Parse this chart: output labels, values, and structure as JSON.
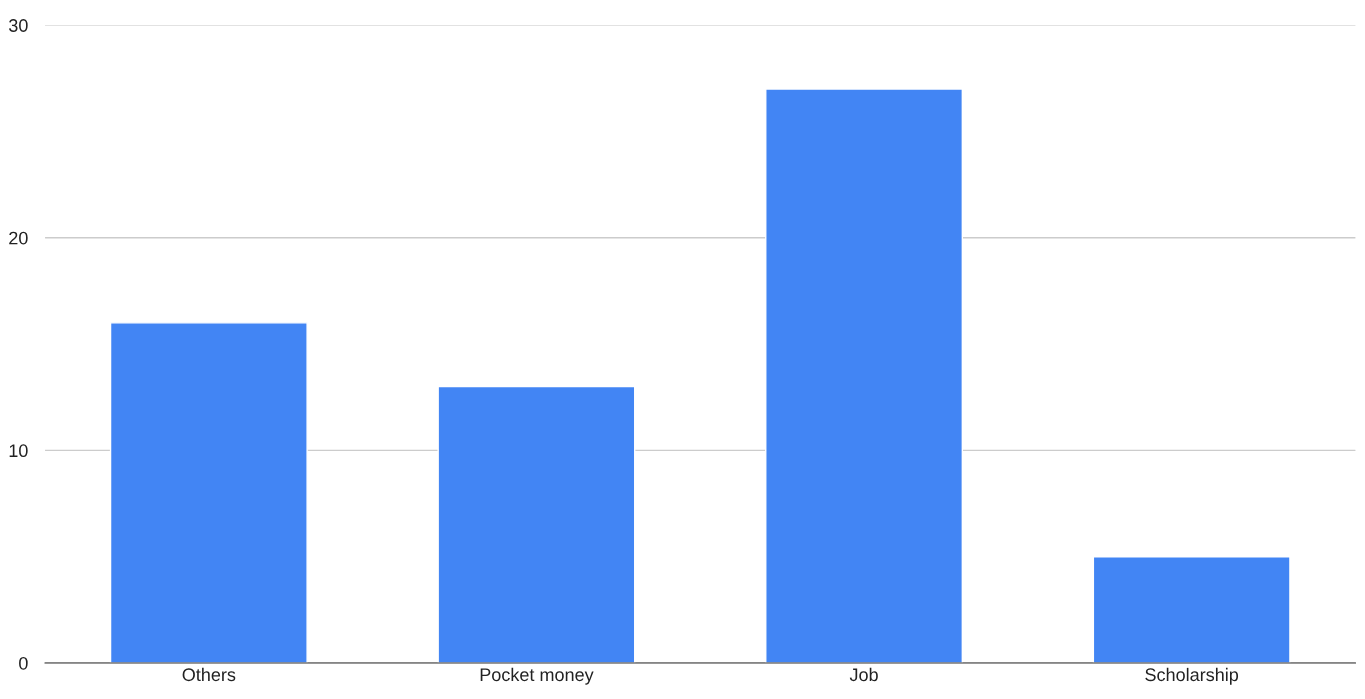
{
  "chart_data": {
    "type": "bar",
    "categories": [
      "Others",
      "Pocket money",
      "Job",
      "Scholarship"
    ],
    "values": [
      16,
      13,
      27,
      5
    ],
    "color": "#4285f4",
    "ylim": [
      0,
      30
    ],
    "yticks": [
      0,
      10,
      20,
      30
    ],
    "grid": "y",
    "legend": false
  }
}
